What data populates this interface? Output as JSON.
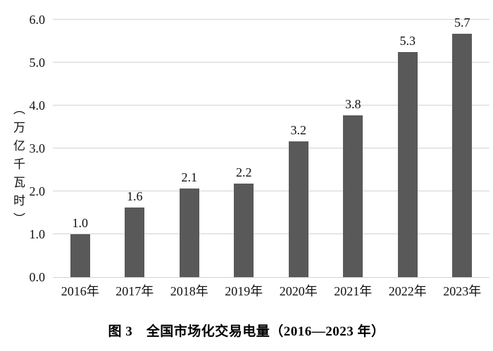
{
  "chart_data": {
    "type": "bar",
    "title": "图 3　全国市场化交易电量（2016—2023 年）",
    "ylabel": "（万亿千瓦时）",
    "xlabel": "",
    "categories": [
      "2016年",
      "2017年",
      "2018年",
      "2019年",
      "2020年",
      "2021年",
      "2022年",
      "2023年"
    ],
    "values": [
      1.0,
      1.6,
      2.1,
      2.2,
      3.2,
      3.8,
      5.3,
      5.7
    ],
    "value_labels": [
      "1.0",
      "1.6",
      "2.1",
      "2.2",
      "3.2",
      "3.8",
      "5.3",
      "5.7"
    ],
    "plot_values": [
      1.0,
      1.63,
      2.07,
      2.18,
      3.17,
      3.77,
      5.25,
      5.67
    ],
    "ylim": [
      0,
      6
    ],
    "y_ticks": [
      "0.0",
      "1.0",
      "2.0",
      "3.0",
      "4.0",
      "5.0",
      "6.0"
    ],
    "grid": true,
    "legend_position": "none",
    "colors": {
      "bar": "#595959",
      "gridline": "#d2d2d2",
      "text": "#111111",
      "background": "#ffffff"
    }
  }
}
